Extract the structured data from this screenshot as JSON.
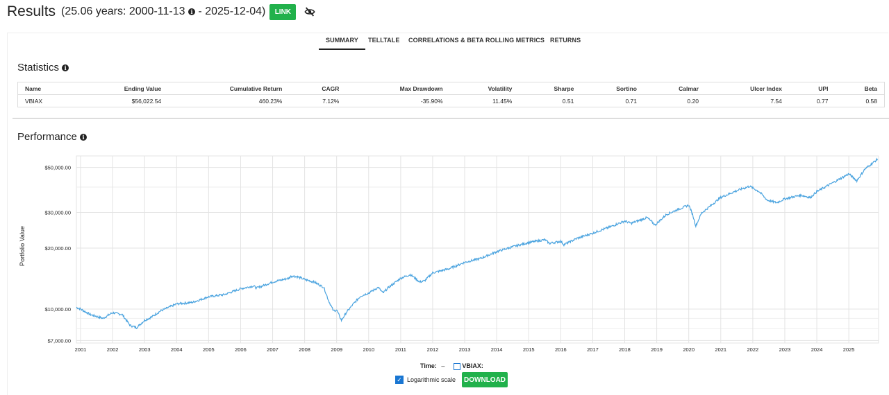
{
  "header": {
    "title": "Results",
    "range_prefix": "(25.06 years: 2000-11-13",
    "range_suffix": " - 2025-12-04)",
    "link_label": "LINK"
  },
  "tabs": [
    "SUMMARY",
    "TELLTALE",
    "CORRELATIONS & BETA",
    "ROLLING METRICS",
    "RETURNS"
  ],
  "statistics": {
    "title": "Statistics",
    "columns": [
      "Name",
      "Ending Value",
      "Cumulative Return",
      "CAGR",
      "Max Drawdown",
      "Volatility",
      "Sharpe",
      "Sortino",
      "Calmar",
      "Ulcer Index",
      "UPI",
      "Beta"
    ],
    "rows": [
      [
        "VBIAX",
        "$56,022.54",
        "460.23%",
        "7.12%",
        "-35.90%",
        "11.45%",
        "0.51",
        "0.71",
        "0.20",
        "7.54",
        "0.77",
        "0.58"
      ]
    ]
  },
  "performance": {
    "title": "Performance",
    "ylabel": "Portfolio Value"
  },
  "chart_data": {
    "type": "line",
    "ylabel": "Portfolio Value",
    "yscale": "log",
    "ylim": [
      6800,
      57000
    ],
    "yticks": [
      {
        "v": 7000,
        "label": "$7,000.00"
      },
      {
        "v": 10000,
        "label": "$10,000.00"
      },
      {
        "v": 20000,
        "label": "$20,000.00"
      },
      {
        "v": 30000,
        "label": "$30,000.00"
      },
      {
        "v": 50000,
        "label": "$50,000.00"
      }
    ],
    "xticks": [
      "2001",
      "2002",
      "2003",
      "2004",
      "2005",
      "2006",
      "2007",
      "2008",
      "2009",
      "2010",
      "2011",
      "2012",
      "2013",
      "2014",
      "2015",
      "2016",
      "2017",
      "2018",
      "2019",
      "2020",
      "2021",
      "2022",
      "2023",
      "2024",
      "2025"
    ],
    "series": [
      {
        "name": "VBIAX",
        "color": "#4aa3df",
        "x": [
          2000.87,
          2001.0,
          2001.3,
          2001.7,
          2002.0,
          2002.3,
          2002.55,
          2002.75,
          2003.0,
          2003.2,
          2003.5,
          2004.0,
          2004.5,
          2005.0,
          2005.5,
          2006.0,
          2006.4,
          2006.5,
          2007.0,
          2007.5,
          2007.6,
          2007.8,
          2008.0,
          2008.3,
          2008.6,
          2008.75,
          2008.9,
          2009.0,
          2009.15,
          2009.3,
          2009.5,
          2009.75,
          2010.0,
          2010.3,
          2010.45,
          2010.6,
          2011.0,
          2011.3,
          2011.6,
          2011.75,
          2012.0,
          2012.5,
          2013.0,
          2013.5,
          2014.0,
          2014.5,
          2015.0,
          2015.5,
          2015.65,
          2016.0,
          2016.1,
          2016.5,
          2017.0,
          2017.5,
          2018.0,
          2018.2,
          2018.7,
          2018.95,
          2019.3,
          2019.7,
          2020.0,
          2020.12,
          2020.22,
          2020.4,
          2020.7,
          2021.0,
          2021.5,
          2021.9,
          2022.2,
          2022.45,
          2022.75,
          2023.0,
          2023.5,
          2023.8,
          2024.0,
          2024.5,
          2025.0,
          2025.25,
          2025.5,
          2025.9
        ],
        "y": [
          10200,
          10000,
          9400,
          9000,
          9600,
          9400,
          8300,
          8100,
          8800,
          9100,
          9800,
          10600,
          10800,
          11500,
          11800,
          12600,
          13000,
          12700,
          13600,
          14200,
          14600,
          14400,
          14000,
          13600,
          12800,
          11000,
          9800,
          9900,
          8800,
          9600,
          10500,
          11600,
          12000,
          12800,
          12000,
          12700,
          14200,
          14800,
          13600,
          13800,
          15100,
          15800,
          17000,
          17800,
          19200,
          20300,
          21300,
          22000,
          21100,
          21600,
          20800,
          22300,
          23700,
          25300,
          27200,
          26500,
          28300,
          26000,
          29300,
          31200,
          32600,
          29300,
          25700,
          29800,
          32500,
          35600,
          38400,
          40400,
          38000,
          34500,
          33500,
          35000,
          36500,
          35500,
          38000,
          42000,
          46500,
          43000,
          49000,
          55000
        ]
      }
    ]
  },
  "controls": {
    "time_label": "Time:",
    "time_value": "–",
    "legend_label": "VBIAX:",
    "log_label": "Logarithmic scale",
    "log_checked": true,
    "download_label": "DOWNLOAD"
  }
}
